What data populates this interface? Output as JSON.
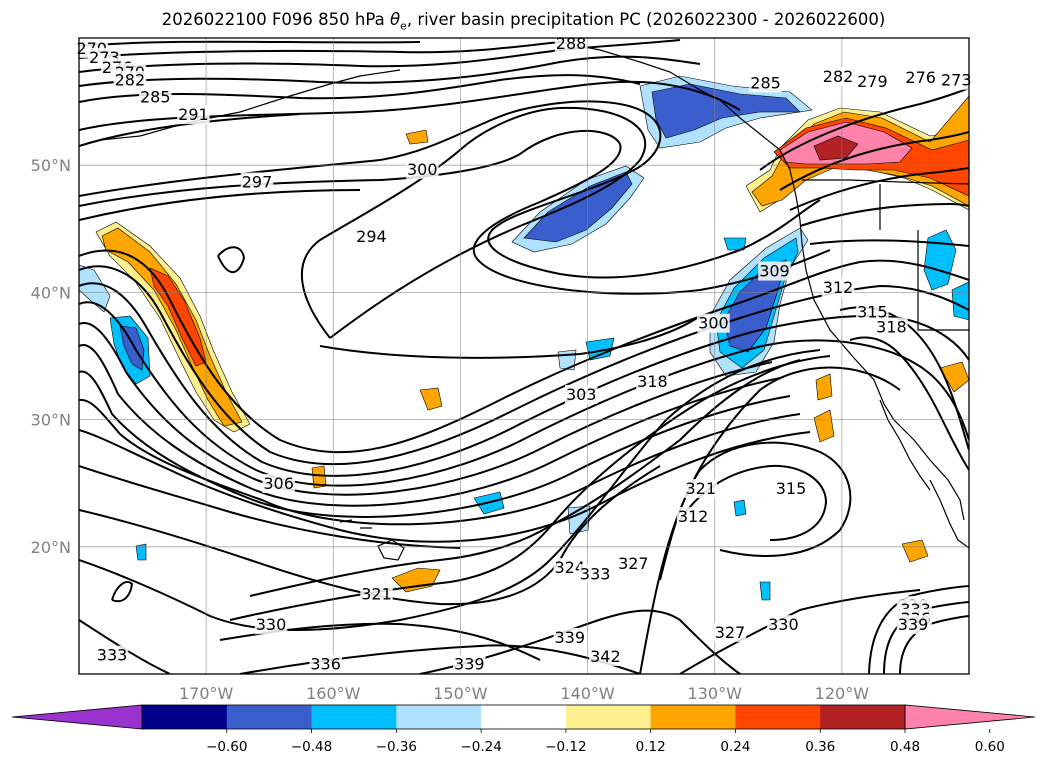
{
  "title": {
    "prefix": "2026022100 F096 850 hPa ",
    "theta_symbol": "θ",
    "theta_sub": "e",
    "suffix": ", river basin precipitation PC (2026022300 - 2026022600)"
  },
  "map": {
    "projection": "PlateCarree",
    "lon_range": [
      -180,
      -110
    ],
    "lat_range": [
      10,
      60
    ],
    "gridlines": true,
    "lat_ticks": [
      {
        "lat": 50,
        "label": "50°N"
      },
      {
        "lat": 40,
        "label": "40°N"
      },
      {
        "lat": 30,
        "label": "30°N"
      },
      {
        "lat": 20,
        "label": "20°N"
      }
    ],
    "lon_ticks": [
      {
        "lon": -170,
        "label": "170°W"
      },
      {
        "lon": -160,
        "label": "160°W"
      },
      {
        "lon": -150,
        "label": "150°W"
      },
      {
        "lon": -140,
        "label": "140°W"
      },
      {
        "lon": -130,
        "label": "130°W"
      },
      {
        "lon": -120,
        "label": "120°W"
      }
    ]
  },
  "contour_labels": [
    {
      "text": "270",
      "lon": -179,
      "lat": 59.1
    },
    {
      "text": "273",
      "lon": -178,
      "lat": 58.4
    },
    {
      "text": "276",
      "lon": -177,
      "lat": 57.6
    },
    {
      "text": "279",
      "lon": -176,
      "lat": 57.2
    },
    {
      "text": "282",
      "lon": -176,
      "lat": 56.6
    },
    {
      "text": "285",
      "lon": -174,
      "lat": 55.3
    },
    {
      "text": "291",
      "lon": -171,
      "lat": 53.9
    },
    {
      "text": "297",
      "lon": -166,
      "lat": 48.6
    },
    {
      "text": "300",
      "lon": -153,
      "lat": 49.6
    },
    {
      "text": "294",
      "lon": -157,
      "lat": 44.3
    },
    {
      "text": "288",
      "lon": -141.3,
      "lat": 59.5
    },
    {
      "text": "285",
      "lon": -126,
      "lat": 56.4
    },
    {
      "text": "282",
      "lon": -120.3,
      "lat": 56.9
    },
    {
      "text": "279",
      "lon": -117.6,
      "lat": 56.5
    },
    {
      "text": "276",
      "lon": -113.8,
      "lat": 56.8
    },
    {
      "text": "273",
      "lon": -111,
      "lat": 56.6
    },
    {
      "text": "309",
      "lon": -125.3,
      "lat": 41.6
    },
    {
      "text": "312",
      "lon": -120.3,
      "lat": 40.3
    },
    {
      "text": "315",
      "lon": -117.6,
      "lat": 38.4
    },
    {
      "text": "318",
      "lon": -116.1,
      "lat": 37.2
    },
    {
      "text": "300",
      "lon": -130.1,
      "lat": 37.5
    },
    {
      "text": "318",
      "lon": -134.9,
      "lat": 32.9
    },
    {
      "text": "303",
      "lon": -140.5,
      "lat": 31.9
    },
    {
      "text": "306",
      "lon": -164.3,
      "lat": 24.9
    },
    {
      "text": "321",
      "lon": -131.1,
      "lat": 24.5
    },
    {
      "text": "315",
      "lon": -124,
      "lat": 24.5
    },
    {
      "text": "312",
      "lon": -131.7,
      "lat": 22.3
    },
    {
      "text": "324",
      "lon": -141.4,
      "lat": 18.3
    },
    {
      "text": "327",
      "lon": -136.4,
      "lat": 18.6
    },
    {
      "text": "333",
      "lon": -139.4,
      "lat": 17.8
    },
    {
      "text": "321",
      "lon": -156.6,
      "lat": 16.2
    },
    {
      "text": "330",
      "lon": -164.9,
      "lat": 13.8
    },
    {
      "text": "333",
      "lon": -177.4,
      "lat": 11.4
    },
    {
      "text": "336",
      "lon": -160.6,
      "lat": 10.7
    },
    {
      "text": "339",
      "lon": -149.3,
      "lat": 10.7
    },
    {
      "text": "339",
      "lon": -141.4,
      "lat": 12.8
    },
    {
      "text": "342",
      "lon": -138.6,
      "lat": 11.3
    },
    {
      "text": "327",
      "lon": -128.8,
      "lat": 13.2
    },
    {
      "text": "330",
      "lon": -124.6,
      "lat": 13.8
    },
    {
      "text": "330",
      "lon": -114.4,
      "lat": 15.3
    },
    {
      "text": "333",
      "lon": -114.2,
      "lat": 15.0
    },
    {
      "text": "336",
      "lon": -114.2,
      "lat": 14.3
    },
    {
      "text": "339",
      "lon": -114.4,
      "lat": 13.8
    }
  ],
  "colorbar": {
    "colors": [
      "#9a32cd",
      "#00008b",
      "#3a5fcd",
      "#00bfff",
      "#b0e2ff",
      "#ffffff",
      "#fff08f",
      "#ffa500",
      "#ff4500",
      "#b22222",
      "#ff82ab"
    ],
    "tick_labels": [
      "−0.60",
      "−0.48",
      "−0.36",
      "−0.24",
      "−0.12",
      "0.12",
      "0.24",
      "0.36",
      "0.48",
      "0.60"
    ],
    "extend": "both"
  }
}
